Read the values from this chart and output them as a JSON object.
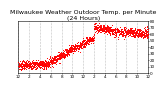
{
  "title": "Milwaukee Weather Outdoor Temp. per Minute\n(24 Hours)",
  "dot_color": "#ff0000",
  "bg_color": "#ffffff",
  "plot_bg_color": "#ffffff",
  "grid_color": "#888888",
  "ylim": [
    0,
    80
  ],
  "yticks": [
    0,
    10,
    20,
    30,
    40,
    50,
    60,
    70,
    80
  ],
  "title_fontsize": 4.5,
  "tick_fontsize": 3.0,
  "dot_size": 0.5,
  "n_points": 1440,
  "seed": 7
}
